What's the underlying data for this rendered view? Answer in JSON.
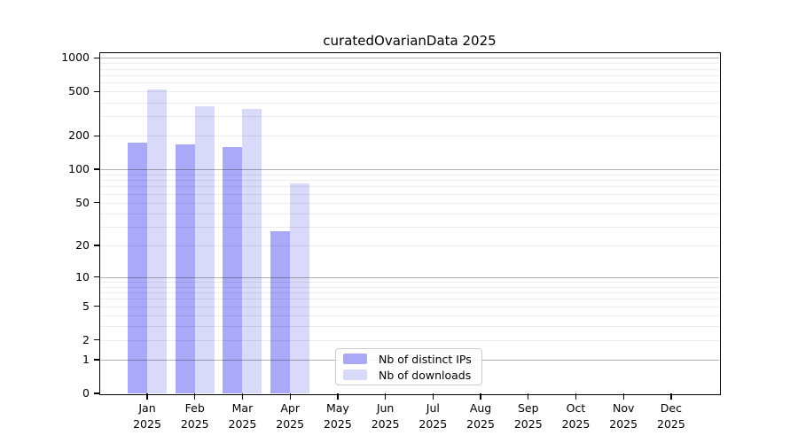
{
  "chart_data": {
    "type": "bar",
    "title": "curatedOvarianData 2025",
    "categories": [
      "Jan",
      "Feb",
      "Mar",
      "Apr",
      "May",
      "Jun",
      "Jul",
      "Aug",
      "Sep",
      "Oct",
      "Nov",
      "Dec"
    ],
    "year_label": "2025",
    "series": [
      {
        "name": "Nb of distinct IPs",
        "color": "#a9a9f7",
        "values": [
          174,
          168,
          159,
          27,
          0,
          0,
          0,
          0,
          0,
          0,
          0,
          0
        ]
      },
      {
        "name": "Nb of downloads",
        "color": "#d9d9fa",
        "values": [
          524,
          368,
          346,
          75,
          0,
          0,
          0,
          0,
          0,
          0,
          0,
          0
        ]
      }
    ],
    "y_axis": {
      "scale": "log1p",
      "ticks": [
        0,
        1,
        2,
        5,
        10,
        20,
        50,
        100,
        200,
        500,
        1000
      ],
      "major_gridlines": [
        1,
        10,
        100,
        1000
      ],
      "ylim_top": 1100
    },
    "grid": true,
    "legend_position": "lower-center"
  },
  "colors": {
    "ips_bar": "#a9a9f7",
    "downloads_bar": "#d9d9fa",
    "axis": "#000000",
    "legend_border": "#cccccc"
  }
}
